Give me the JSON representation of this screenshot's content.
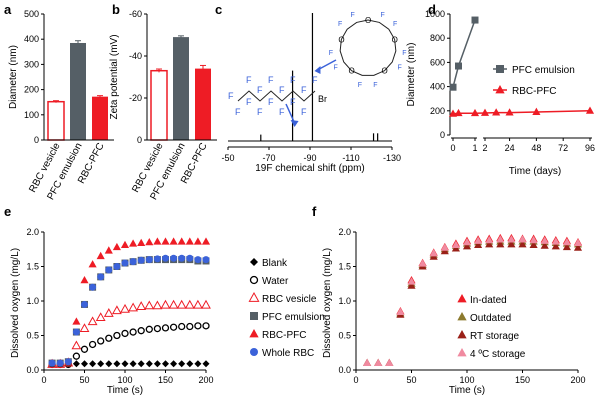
{
  "colors": {
    "red": "#ee1c25",
    "gray": "#555f66",
    "blue": "#3b62d9",
    "olive": "#8c7a2e",
    "darkred": "#9a2018",
    "pink": "#f08aa0",
    "black": "#000000"
  },
  "chart_data": [
    {
      "panel": "a",
      "type": "bar",
      "ylabel": "Diameter (nm)",
      "ylim": [
        0,
        500
      ],
      "yticks": [
        0,
        100,
        200,
        300,
        400,
        500
      ],
      "categories": [
        "RBC vesicle",
        "PFC emulsion",
        "RBC-PFC"
      ],
      "values": [
        152,
        385,
        172
      ],
      "errors": [
        4,
        9,
        4
      ],
      "styles": [
        "open-red",
        "gray",
        "red"
      ]
    },
    {
      "panel": "b",
      "type": "bar",
      "ylabel": "Zeta potential (mV)",
      "ylim": [
        0,
        -60
      ],
      "yticks": [
        0,
        -20,
        -40,
        -60
      ],
      "categories": [
        "RBC vesicle",
        "PFC emulsion",
        "RBC-PFC"
      ],
      "values": [
        -33,
        -49,
        -34
      ],
      "errors": [
        0.8,
        0.6,
        1.5
      ],
      "styles": [
        "open-red",
        "gray",
        "red"
      ]
    },
    {
      "panel": "c",
      "type": "line",
      "xlabel": "19F chemical shift (ppm)",
      "xlim": [
        -50,
        -130
      ],
      "xticks": [
        -50,
        -70,
        -90,
        -110,
        -130
      ],
      "peaks": [
        {
          "x": -81.5,
          "h": 0.55
        },
        {
          "x": -91.2,
          "h": 1.0
        },
        {
          "x": -66,
          "h": 0.05
        },
        {
          "x": -121,
          "h": 0.06
        },
        {
          "x": -123,
          "h": 0.06
        }
      ],
      "structures": [
        "perfluorooctyl bromide",
        "perfluoro-15-crown-5-ether"
      ],
      "atom_labels": {
        "F": "F",
        "Br": "Br",
        "O": "O"
      }
    },
    {
      "panel": "d",
      "type": "line",
      "xlabel": "Time (days)",
      "ylabel": "Diameter (nm)",
      "ylim": [
        0,
        1000
      ],
      "yticks": [
        0,
        200,
        400,
        600,
        800,
        1000
      ],
      "xticks_left": [
        0,
        1
      ],
      "xticks_right": [
        2,
        24,
        48,
        72,
        96
      ],
      "series": [
        {
          "name": "PFC emulsion",
          "marker": "square",
          "color": "gray",
          "x": [
            0,
            0.25,
            1
          ],
          "y": [
            395,
            570,
            950
          ]
        },
        {
          "name": "RBC-PFC",
          "marker": "triangle",
          "color": "red",
          "x": [
            0,
            0.25,
            1,
            2,
            12,
            24,
            48,
            96
          ],
          "y": [
            175,
            180,
            180,
            182,
            185,
            185,
            190,
            200
          ]
        }
      ]
    },
    {
      "panel": "e",
      "type": "scatter",
      "xlabel": "Time (s)",
      "ylabel": "Dissolved oxygen (mg/L)",
      "xlim": [
        0,
        200
      ],
      "ylim": [
        0,
        2.0
      ],
      "xticks": [
        0,
        50,
        100,
        150,
        200
      ],
      "yticks": [
        0.0,
        0.5,
        1.0,
        1.5,
        2.0
      ],
      "x": [
        10,
        20,
        30,
        40,
        50,
        60,
        70,
        80,
        90,
        100,
        110,
        120,
        130,
        140,
        150,
        160,
        170,
        180,
        190,
        200
      ],
      "series": [
        {
          "name": "Blank",
          "marker": "diamond",
          "color": "black",
          "y": [
            0.08,
            0.09,
            0.09,
            0.09,
            0.09,
            0.09,
            0.09,
            0.09,
            0.09,
            0.09,
            0.09,
            0.09,
            0.09,
            0.09,
            0.09,
            0.09,
            0.09,
            0.09,
            0.09,
            0.09
          ]
        },
        {
          "name": "Water",
          "marker": "open-circle",
          "color": "black",
          "y": [
            0.08,
            0.08,
            0.08,
            0.2,
            0.3,
            0.37,
            0.42,
            0.46,
            0.5,
            0.53,
            0.55,
            0.57,
            0.59,
            0.6,
            0.61,
            0.62,
            0.63,
            0.63,
            0.64,
            0.64
          ]
        },
        {
          "name": "RBC vesicle",
          "marker": "open-triangle",
          "color": "red",
          "y": [
            0.08,
            0.08,
            0.1,
            0.35,
            0.6,
            0.7,
            0.76,
            0.82,
            0.86,
            0.88,
            0.9,
            0.92,
            0.93,
            0.93,
            0.94,
            0.94,
            0.94,
            0.94,
            0.94,
            0.94
          ]
        },
        {
          "name": "PFC emulsion",
          "marker": "square",
          "color": "gray",
          "y": [
            0.1,
            0.1,
            0.12,
            0.55,
            0.95,
            1.2,
            1.35,
            1.45,
            1.5,
            1.55,
            1.57,
            1.59,
            1.6,
            1.6,
            1.6,
            1.6,
            1.6,
            1.6,
            1.58,
            1.58
          ]
        },
        {
          "name": "RBC-PFC",
          "marker": "triangle",
          "color": "red",
          "y": [
            0.1,
            0.1,
            0.12,
            0.7,
            1.3,
            1.53,
            1.65,
            1.73,
            1.78,
            1.81,
            1.83,
            1.84,
            1.85,
            1.86,
            1.86,
            1.86,
            1.86,
            1.86,
            1.86,
            1.86
          ]
        },
        {
          "name": "Whole RBC",
          "marker": "circle",
          "color": "blue",
          "y": [
            0.1,
            0.1,
            0.12,
            0.55,
            0.95,
            1.2,
            1.35,
            1.45,
            1.5,
            1.55,
            1.57,
            1.59,
            1.6,
            1.61,
            1.62,
            1.62,
            1.62,
            1.62,
            1.6,
            1.6
          ]
        }
      ]
    },
    {
      "panel": "f",
      "type": "scatter",
      "xlabel": "Time (s)",
      "ylabel": "Dissolved oxygen (mg/L)",
      "xlim": [
        0,
        200
      ],
      "ylim": [
        0,
        2.0
      ],
      "xticks": [
        0,
        50,
        100,
        150,
        200
      ],
      "yticks": [
        0.0,
        0.5,
        1.0,
        1.5,
        2.0
      ],
      "x": [
        10,
        20,
        30,
        40,
        50,
        60,
        70,
        80,
        90,
        100,
        110,
        120,
        130,
        140,
        150,
        160,
        170,
        180,
        190,
        200
      ],
      "series": [
        {
          "name": "In-dated",
          "marker": "triangle",
          "color": "red",
          "y": [
            0.1,
            0.1,
            0.1,
            0.85,
            1.3,
            1.55,
            1.7,
            1.78,
            1.83,
            1.87,
            1.89,
            1.9,
            1.91,
            1.91,
            1.9,
            1.9,
            1.89,
            1.88,
            1.87,
            1.85
          ]
        },
        {
          "name": "Outdated",
          "marker": "triangle",
          "color": "olive",
          "y": [
            0.1,
            0.1,
            0.1,
            0.82,
            1.25,
            1.52,
            1.67,
            1.75,
            1.8,
            1.83,
            1.85,
            1.86,
            1.86,
            1.86,
            1.86,
            1.86,
            1.85,
            1.84,
            1.83,
            1.82
          ]
        },
        {
          "name": "RT storage",
          "marker": "triangle",
          "color": "darkred",
          "y": [
            0.1,
            0.1,
            0.1,
            0.8,
            1.22,
            1.5,
            1.64,
            1.72,
            1.76,
            1.79,
            1.81,
            1.82,
            1.82,
            1.82,
            1.82,
            1.81,
            1.8,
            1.79,
            1.78,
            1.77
          ]
        },
        {
          "name": "4 ºC storage",
          "marker": "triangle",
          "color": "pink",
          "y": [
            0.1,
            0.1,
            0.1,
            0.84,
            1.28,
            1.54,
            1.69,
            1.77,
            1.81,
            1.85,
            1.87,
            1.88,
            1.89,
            1.89,
            1.89,
            1.88,
            1.87,
            1.86,
            1.85,
            1.84
          ]
        }
      ]
    }
  ],
  "panel_labels": [
    "a",
    "b",
    "c",
    "d",
    "e",
    "f"
  ]
}
